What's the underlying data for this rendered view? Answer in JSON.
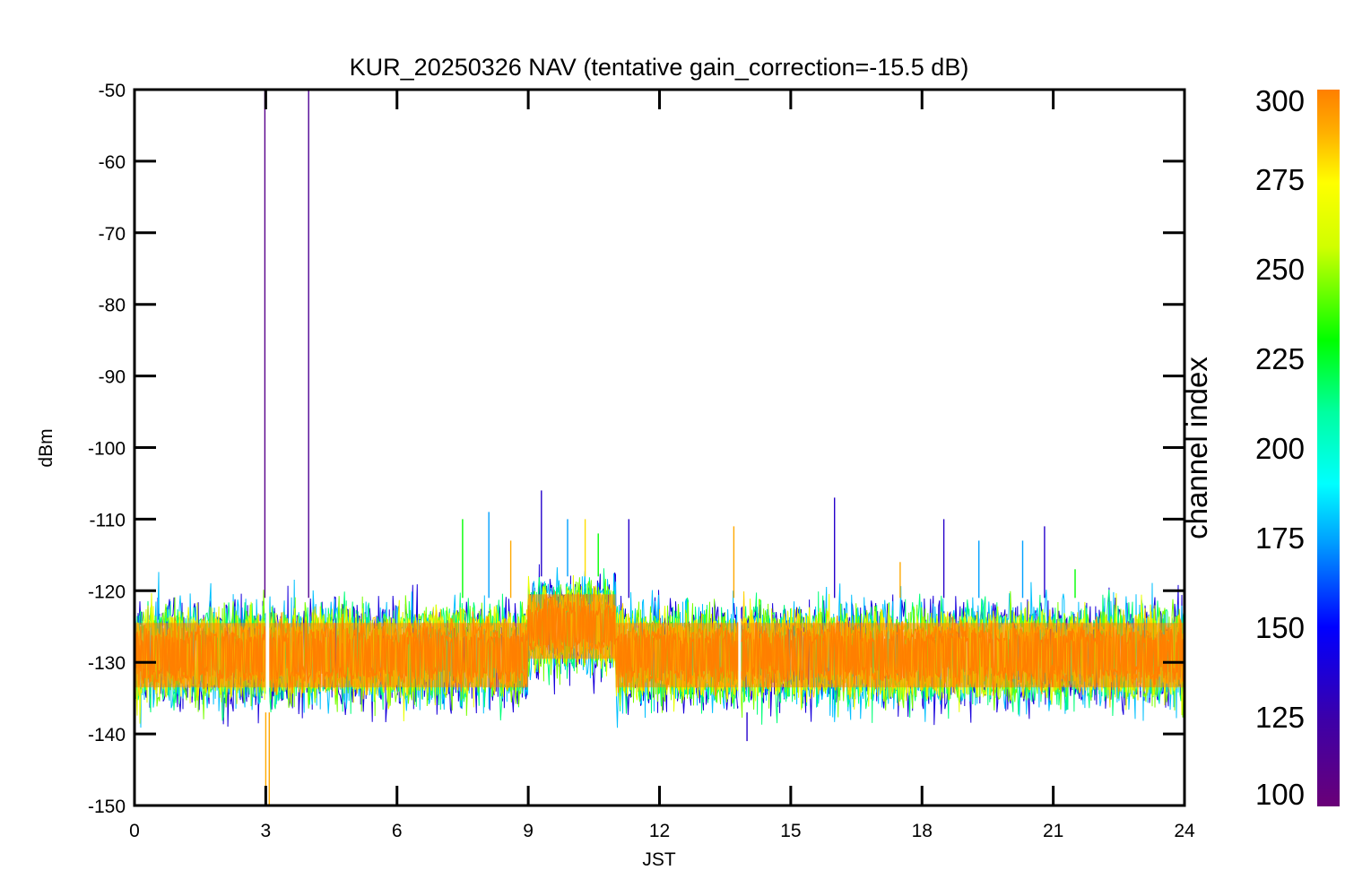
{
  "chart_data": {
    "type": "line",
    "title": "KUR_20250326 NAV (tentative gain_correction=-15.5 dB)",
    "xlabel": "JST",
    "ylabel": "dBm",
    "xlim": [
      0,
      24
    ],
    "ylim": [
      -150,
      -50
    ],
    "x_ticks": [
      "0",
      "3",
      "6",
      "9",
      "12",
      "15",
      "18",
      "21",
      "24"
    ],
    "y_ticks": [
      "-50",
      "-60",
      "-70",
      "-80",
      "-90",
      "-100",
      "-110",
      "-120",
      "-130",
      "-140",
      "-150"
    ],
    "colorbar": {
      "label": "channel index",
      "range": [
        100,
        300
      ],
      "ticks": [
        "300",
        "275",
        "250",
        "225",
        "200",
        "175",
        "150",
        "125",
        "100"
      ]
    },
    "noise_floor": {
      "description_values": [
        {
          "x_start": 0,
          "x_end": 9,
          "center": -129,
          "upper": -121,
          "lower": -137
        },
        {
          "x_start": 9,
          "x_end": 11,
          "center": -125,
          "upper": -118,
          "lower": -133
        },
        {
          "x_start": 11,
          "x_end": 24,
          "center": -129,
          "upper": -121,
          "lower": -137
        }
      ]
    },
    "data_gaps": [
      {
        "x": 3.0,
        "width": 0.08
      },
      {
        "x": 13.8,
        "width": 0.06
      }
    ],
    "spikes": [
      {
        "x": 2.98,
        "y": -50,
        "channel": 110
      },
      {
        "x": 3.98,
        "y": -50,
        "channel": 115
      },
      {
        "x": 3.0,
        "y": -150,
        "channel": 290
      },
      {
        "x": 3.08,
        "y": -150,
        "channel": 290
      },
      {
        "x": 7.5,
        "y": -110,
        "channel": 230
      },
      {
        "x": 8.1,
        "y": -109,
        "channel": 175
      },
      {
        "x": 8.6,
        "y": -113,
        "channel": 290
      },
      {
        "x": 9.3,
        "y": -106,
        "channel": 135
      },
      {
        "x": 9.9,
        "y": -110,
        "channel": 175
      },
      {
        "x": 10.3,
        "y": -110,
        "channel": 280
      },
      {
        "x": 10.6,
        "y": -112,
        "channel": 230
      },
      {
        "x": 11.3,
        "y": -110,
        "channel": 135
      },
      {
        "x": 13.7,
        "y": -111,
        "channel": 290
      },
      {
        "x": 14.0,
        "y": -141,
        "channel": 135
      },
      {
        "x": 16.0,
        "y": -107,
        "channel": 135
      },
      {
        "x": 17.5,
        "y": -116,
        "channel": 290
      },
      {
        "x": 18.5,
        "y": -110,
        "channel": 135
      },
      {
        "x": 19.3,
        "y": -113,
        "channel": 175
      },
      {
        "x": 20.3,
        "y": -113,
        "channel": 175
      },
      {
        "x": 20.8,
        "y": -111,
        "channel": 135
      },
      {
        "x": 21.5,
        "y": -117,
        "channel": 230
      }
    ]
  }
}
